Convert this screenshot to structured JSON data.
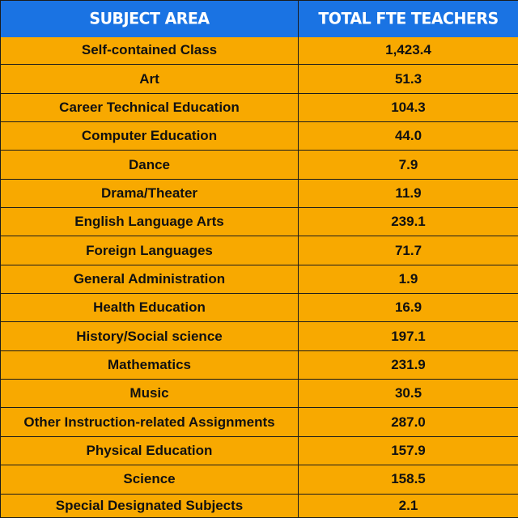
{
  "header": {
    "subject_label": "SUBJECT AREA",
    "total_label": "TOTAL FTE TEACHERS"
  },
  "colors": {
    "header_bg": "#1a73e3",
    "row_bg": "#f8a900",
    "border": "#1b1b1b"
  },
  "rows": [
    {
      "subject": "Self-contained Class",
      "total": "1,423.4"
    },
    {
      "subject": "Art",
      "total": "51.3"
    },
    {
      "subject": "Career Technical Education",
      "total": "104.3"
    },
    {
      "subject": "Computer Education",
      "total": "44.0"
    },
    {
      "subject": "Dance",
      "total": "7.9"
    },
    {
      "subject": "Drama/Theater",
      "total": "11.9"
    },
    {
      "subject": "English Language Arts",
      "total": "239.1"
    },
    {
      "subject": "Foreign Languages",
      "total": "71.7"
    },
    {
      "subject": "General Administration",
      "total": "1.9"
    },
    {
      "subject": "Health Education",
      "total": "16.9"
    },
    {
      "subject": "History/Social science",
      "total": "197.1"
    },
    {
      "subject": "Mathematics",
      "total": "231.9"
    },
    {
      "subject": "Music",
      "total": "30.5"
    },
    {
      "subject": "Other Instruction-related Assignments",
      "total": "287.0"
    },
    {
      "subject": "Physical Education",
      "total": "157.9"
    },
    {
      "subject": "Science",
      "total": "158.5"
    },
    {
      "subject": "Special Designated Subjects",
      "total": "2.1"
    }
  ]
}
